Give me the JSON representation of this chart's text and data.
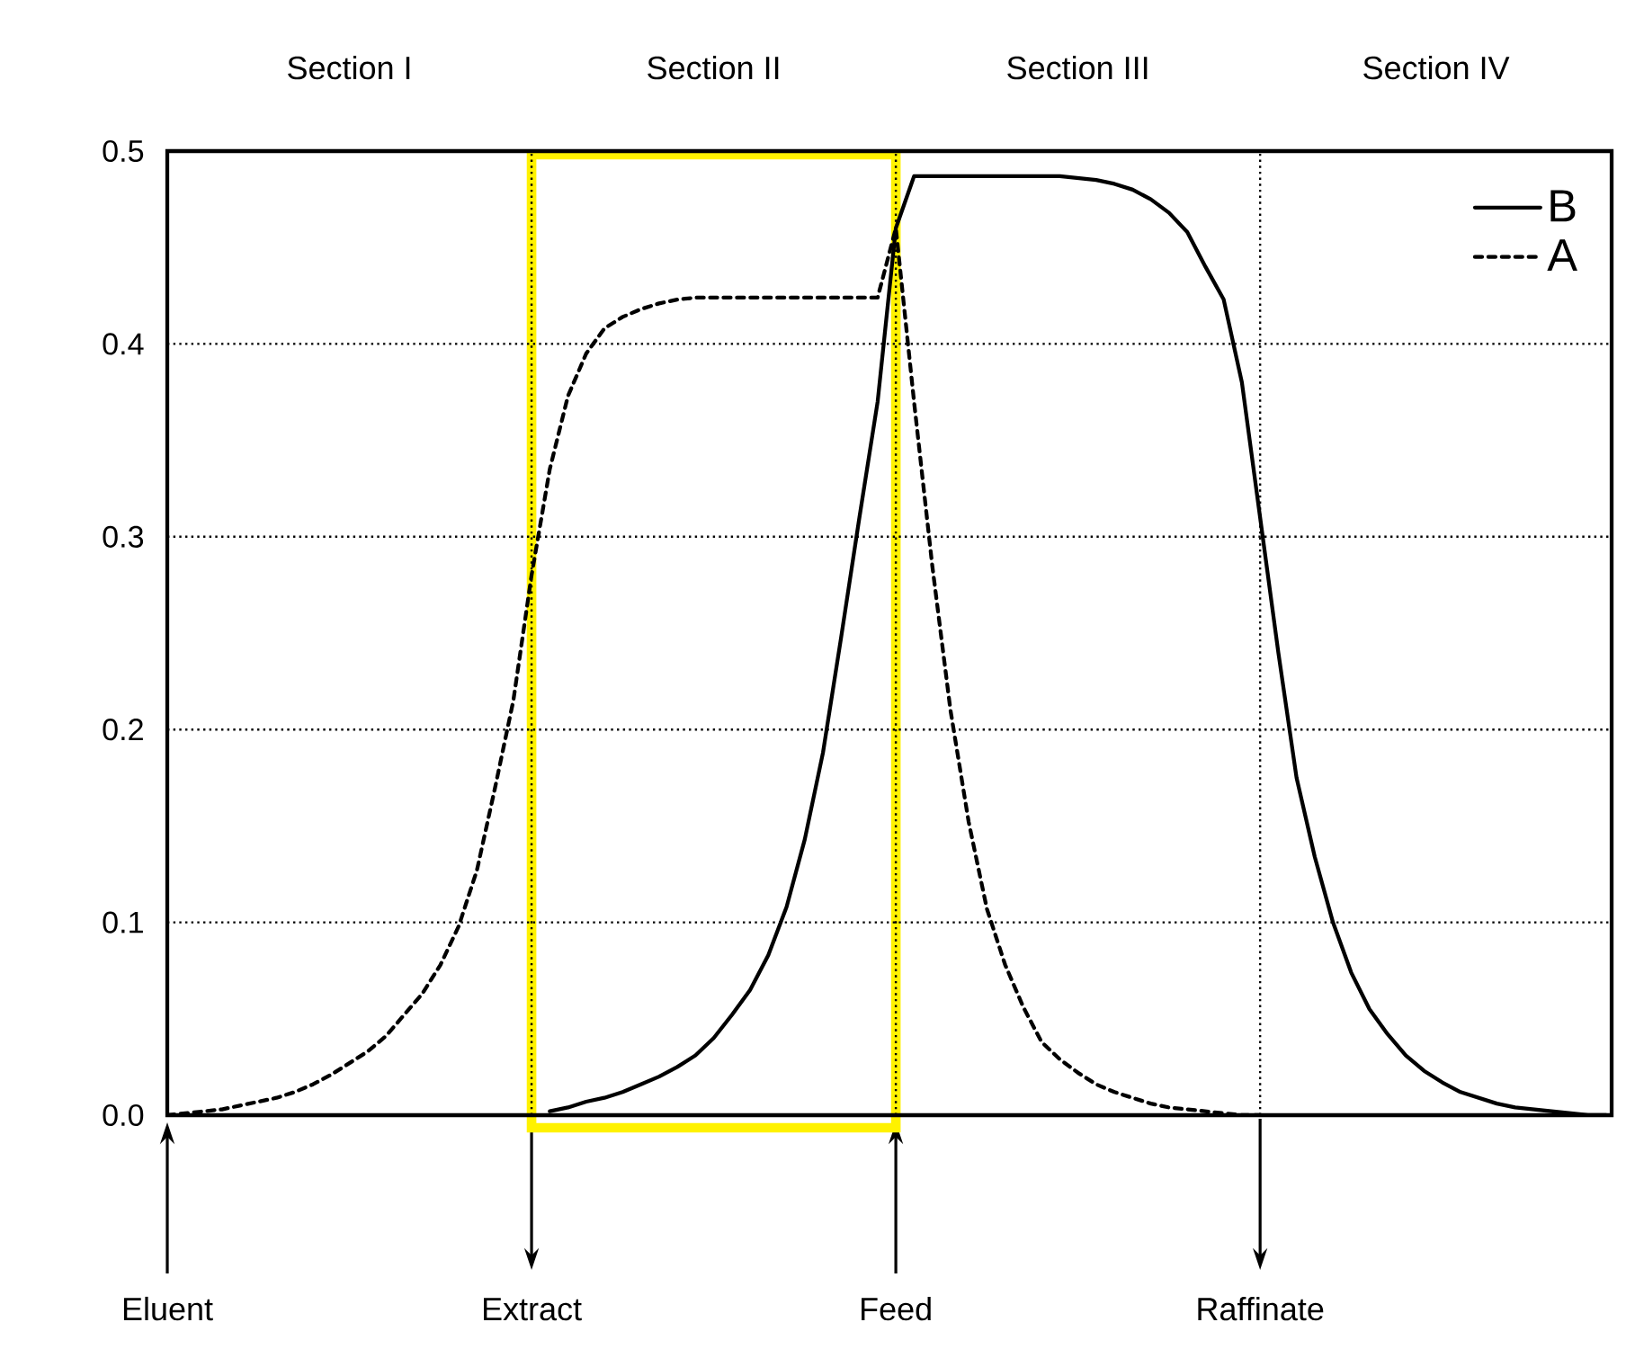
{
  "chart_data": {
    "type": "line",
    "categories": [
      null,
      null,
      null,
      null,
      null,
      null,
      null,
      null,
      null,
      null,
      null,
      null,
      null,
      null,
      null,
      null,
      null,
      null,
      null,
      null,
      null,
      null,
      null,
      null,
      null,
      null,
      null,
      null,
      null,
      null,
      null,
      null,
      null,
      null,
      null,
      null,
      null,
      null,
      null,
      null,
      null,
      null,
      null,
      null,
      null,
      null,
      null,
      null,
      null,
      null,
      null,
      null,
      null,
      null,
      null,
      null,
      null,
      null,
      null,
      null,
      null,
      null,
      null,
      null,
      null,
      null,
      null,
      null,
      null,
      null,
      null,
      null,
      null,
      null,
      null,
      null,
      null,
      null,
      null,
      null
    ],
    "series": [
      {
        "name": "B",
        "color": "#000000",
        "line_style": "solid",
        "values": [
          null,
          null,
          null,
          null,
          null,
          null,
          null,
          null,
          null,
          null,
          null,
          null,
          null,
          null,
          null,
          null,
          null,
          null,
          null,
          null,
          null,
          0.002,
          0.004,
          0.007,
          0.009,
          0.012,
          0.016,
          0.02,
          0.025,
          0.031,
          0.04,
          0.052,
          0.065,
          0.083,
          0.108,
          0.143,
          0.188,
          0.248,
          0.31,
          0.37,
          0.46,
          0.487,
          0.487,
          0.487,
          0.487,
          0.487,
          0.487,
          0.487,
          0.487,
          0.487,
          0.486,
          0.485,
          0.483,
          0.48,
          0.475,
          0.468,
          0.458,
          0.44,
          0.423,
          0.38,
          0.31,
          0.24,
          0.175,
          0.134,
          0.1,
          0.074,
          0.055,
          0.042,
          0.031,
          0.023,
          0.017,
          0.012,
          0.009,
          0.006,
          0.004,
          0.003,
          0.002,
          0.001,
          0,
          0
        ]
      },
      {
        "name": "A",
        "color": "#000000",
        "line_style": "dashed",
        "values": [
          0,
          0.001,
          0.002,
          0.003,
          0.005,
          0.007,
          0.009,
          0.012,
          0.016,
          0.021,
          0.027,
          0.033,
          0.041,
          0.052,
          0.063,
          0.078,
          0.098,
          0.127,
          0.17,
          0.215,
          0.28,
          0.335,
          0.373,
          0.395,
          0.408,
          0.414,
          0.418,
          0.421,
          0.423,
          0.424,
          0.424,
          0.424,
          0.424,
          0.424,
          0.424,
          0.424,
          0.424,
          0.424,
          0.424,
          0.424,
          0.46,
          0.37,
          0.285,
          0.21,
          0.152,
          0.107,
          0.078,
          0.056,
          0.038,
          0.029,
          0.022,
          0.016,
          0.012,
          0.009,
          0.006,
          0.004,
          0.003,
          0.002,
          0.001,
          0,
          0,
          null,
          null,
          null,
          null,
          null,
          null,
          null,
          null,
          null,
          null,
          null,
          null,
          null,
          null,
          null,
          null,
          null,
          null,
          null
        ]
      }
    ],
    "ylim": [
      0,
      0.5
    ],
    "yticks": [
      {
        "value": 0,
        "label": "0.0"
      },
      0.1,
      0.2,
      0.3,
      0.4,
      0.5
    ],
    "tick_labels": "y",
    "grid": true,
    "legend": "top right",
    "annotations": [
      "Section I",
      "Section II",
      "Section III",
      "Section IV",
      "Eluent",
      "Extract",
      "Feed",
      "Raffinate"
    ]
  }
}
